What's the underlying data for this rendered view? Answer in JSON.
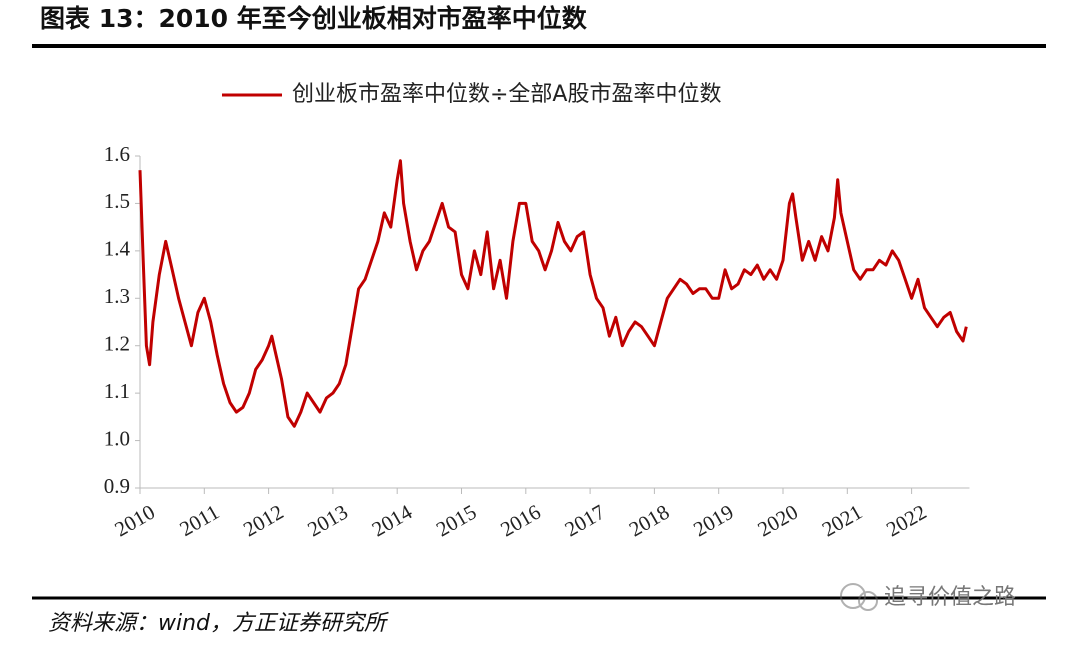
{
  "header": {
    "title": "图表 13：2010 年至今创业板相对市盈率中位数"
  },
  "chart_data": {
    "type": "line",
    "x": [
      2010.0,
      2010.05,
      2010.1,
      2010.15,
      2010.2,
      2010.3,
      2010.4,
      2010.5,
      2010.6,
      2010.7,
      2010.8,
      2010.9,
      2011.0,
      2011.1,
      2011.2,
      2011.3,
      2011.4,
      2011.5,
      2011.6,
      2011.7,
      2011.8,
      2011.9,
      2012.0,
      2012.05,
      2012.1,
      2012.2,
      2012.3,
      2012.4,
      2012.5,
      2012.6,
      2012.7,
      2012.8,
      2012.9,
      2013.0,
      2013.1,
      2013.2,
      2013.3,
      2013.4,
      2013.5,
      2013.6,
      2013.7,
      2013.8,
      2013.9,
      2014.0,
      2014.05,
      2014.1,
      2014.2,
      2014.3,
      2014.4,
      2014.5,
      2014.6,
      2014.7,
      2014.8,
      2014.9,
      2015.0,
      2015.1,
      2015.2,
      2015.3,
      2015.4,
      2015.5,
      2015.6,
      2015.7,
      2015.8,
      2015.9,
      2016.0,
      2016.1,
      2016.2,
      2016.3,
      2016.4,
      2016.5,
      2016.6,
      2016.7,
      2016.8,
      2016.9,
      2017.0,
      2017.1,
      2017.2,
      2017.3,
      2017.4,
      2017.5,
      2017.6,
      2017.7,
      2017.8,
      2017.9,
      2018.0,
      2018.1,
      2018.2,
      2018.3,
      2018.4,
      2018.5,
      2018.6,
      2018.7,
      2018.8,
      2018.9,
      2019.0,
      2019.1,
      2019.2,
      2019.3,
      2019.4,
      2019.5,
      2019.6,
      2019.7,
      2019.8,
      2019.9,
      2020.0,
      2020.1,
      2020.15,
      2020.2,
      2020.3,
      2020.4,
      2020.5,
      2020.6,
      2020.7,
      2020.8,
      2020.85,
      2020.9,
      2021.0,
      2021.1,
      2021.2,
      2021.3,
      2021.4,
      2021.5,
      2021.6,
      2021.7,
      2021.8,
      2021.9,
      2022.0,
      2022.1,
      2022.2,
      2022.3,
      2022.4,
      2022.5,
      2022.6,
      2022.7,
      2022.8,
      2022.85
    ],
    "series": [
      {
        "name": "创业板市盈率中位数÷全部A股市盈率中位数",
        "color": "#c00000",
        "values": [
          1.57,
          1.38,
          1.2,
          1.16,
          1.25,
          1.35,
          1.42,
          1.36,
          1.3,
          1.25,
          1.2,
          1.27,
          1.3,
          1.25,
          1.18,
          1.12,
          1.08,
          1.06,
          1.07,
          1.1,
          1.15,
          1.17,
          1.2,
          1.22,
          1.19,
          1.13,
          1.05,
          1.03,
          1.06,
          1.1,
          1.08,
          1.06,
          1.09,
          1.1,
          1.12,
          1.16,
          1.24,
          1.32,
          1.34,
          1.38,
          1.42,
          1.48,
          1.45,
          1.55,
          1.59,
          1.5,
          1.42,
          1.36,
          1.4,
          1.42,
          1.46,
          1.5,
          1.45,
          1.44,
          1.35,
          1.32,
          1.4,
          1.35,
          1.44,
          1.32,
          1.38,
          1.3,
          1.42,
          1.5,
          1.5,
          1.42,
          1.4,
          1.36,
          1.4,
          1.46,
          1.42,
          1.4,
          1.43,
          1.44,
          1.35,
          1.3,
          1.28,
          1.22,
          1.26,
          1.2,
          1.23,
          1.25,
          1.24,
          1.22,
          1.2,
          1.25,
          1.3,
          1.32,
          1.34,
          1.33,
          1.31,
          1.32,
          1.32,
          1.3,
          1.3,
          1.36,
          1.32,
          1.33,
          1.36,
          1.35,
          1.37,
          1.34,
          1.36,
          1.34,
          1.38,
          1.5,
          1.52,
          1.47,
          1.38,
          1.42,
          1.38,
          1.43,
          1.4,
          1.47,
          1.55,
          1.48,
          1.42,
          1.36,
          1.34,
          1.36,
          1.36,
          1.38,
          1.37,
          1.4,
          1.38,
          1.34,
          1.3,
          1.34,
          1.28,
          1.26,
          1.24,
          1.26,
          1.27,
          1.23,
          1.21,
          1.24
        ]
      }
    ],
    "xlim": [
      2010,
      2022.9
    ],
    "xticks": [
      2010,
      2011,
      2012,
      2013,
      2014,
      2015,
      2016,
      2017,
      2018,
      2019,
      2020,
      2021,
      2022
    ],
    "ylim": [
      0.9,
      1.6
    ],
    "yticks": [
      0.9,
      {
        "value": 1,
        "label": "1.0"
      },
      1.1,
      1.2,
      1.3,
      1.4,
      1.5,
      1.6
    ],
    "legend": "top"
  },
  "footer": {
    "source": "资料来源：wind，方正证券研究所",
    "watermark": "追寻价值之路"
  }
}
